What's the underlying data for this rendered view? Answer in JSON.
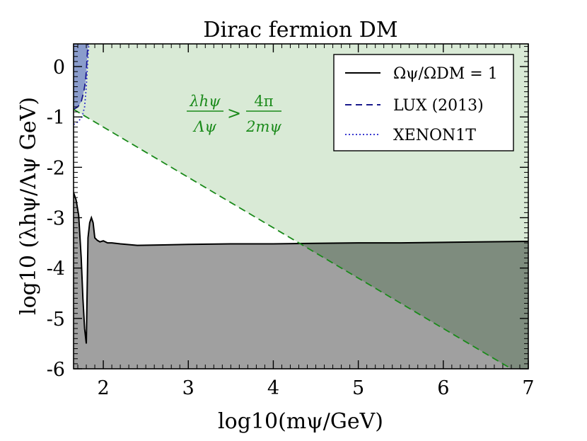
{
  "chart_data": {
    "type": "line",
    "title": "Dirac fermion DM",
    "xlabel": "log10(mψ/GeV)",
    "ylabel": "log10 (λhψ/Λψ GeV)",
    "xlim": [
      1.65,
      7.0
    ],
    "ylim": [
      -6.0,
      0.45
    ],
    "xticks": [
      2,
      3,
      4,
      5,
      6,
      7
    ],
    "xtick_labels": [
      "2",
      "3",
      "4",
      "5",
      "6",
      "7"
    ],
    "yticks": [
      0,
      -1,
      -2,
      -3,
      -4,
      -5,
      -6
    ],
    "ytick_labels": [
      "0",
      "-1",
      "-2",
      "-3",
      "-4",
      "-5",
      "-6"
    ],
    "legend_position": "top-right",
    "series": [
      {
        "name": "Ωψ/ΩDM = 1",
        "style": "solid",
        "color": "#000000",
        "x": [
          1.65,
          1.68,
          1.71,
          1.74,
          1.76,
          1.78,
          1.8,
          1.82,
          1.84,
          1.86,
          1.88,
          1.9,
          1.93,
          1.96,
          2.0,
          2.05,
          2.1,
          2.2,
          2.4,
          2.7,
          3.0,
          3.5,
          4.0,
          4.5,
          5.0,
          5.5,
          6.0,
          6.5,
          7.0
        ],
        "y": [
          -2.5,
          -2.65,
          -2.95,
          -3.8,
          -4.6,
          -5.2,
          -5.5,
          -3.4,
          -3.1,
          -3.0,
          -3.1,
          -3.4,
          -3.45,
          -3.48,
          -3.46,
          -3.5,
          -3.5,
          -3.52,
          -3.55,
          -3.54,
          -3.53,
          -3.52,
          -3.52,
          -3.51,
          -3.5,
          -3.5,
          -3.49,
          -3.48,
          -3.47
        ]
      },
      {
        "name": "LUX (2013)",
        "style": "dashed",
        "color": "#1a1a8c",
        "x": [
          1.65,
          1.7,
          1.74,
          1.77,
          1.79,
          1.8,
          1.81,
          1.82
        ],
        "y": [
          -0.85,
          -0.8,
          -0.7,
          -0.5,
          -0.3,
          -0.1,
          0.2,
          0.45
        ]
      },
      {
        "name": "XENON1T",
        "style": "dotted",
        "color": "#3a3ad0",
        "x": [
          1.65,
          1.7,
          1.75,
          1.78,
          1.8,
          1.81,
          1.82,
          1.83
        ],
        "y": [
          -1.15,
          -1.1,
          -1.0,
          -0.8,
          -0.4,
          -0.1,
          0.2,
          0.45
        ]
      },
      {
        "name": "Perturbativity boundary",
        "style": "dashed",
        "color": "#1a8a1a",
        "x": [
          1.65,
          6.8
        ],
        "y": [
          -0.85,
          -6.0
        ]
      }
    ],
    "regions": [
      {
        "name": "perturbativity-excluded",
        "color": "#d9ead6",
        "desc": "above green line"
      },
      {
        "name": "overabundant",
        "color": "#a0a0a0",
        "desc": "below black curve"
      },
      {
        "name": "direct-detection-excluded",
        "color": "#8a9ccc",
        "desc": "left of LUX curve"
      }
    ],
    "annotation": {
      "lhs_num": "λhψ",
      "lhs_den": "Λψ",
      "relation": ">",
      "rhs_num": "4π",
      "rhs_den": "2mψ"
    },
    "legend": [
      {
        "label": "Ωψ/ΩDM = 1",
        "style": "solid"
      },
      {
        "label": "LUX (2013)",
        "style": "dashed"
      },
      {
        "label": "XENON1T",
        "style": "dotted"
      }
    ]
  }
}
